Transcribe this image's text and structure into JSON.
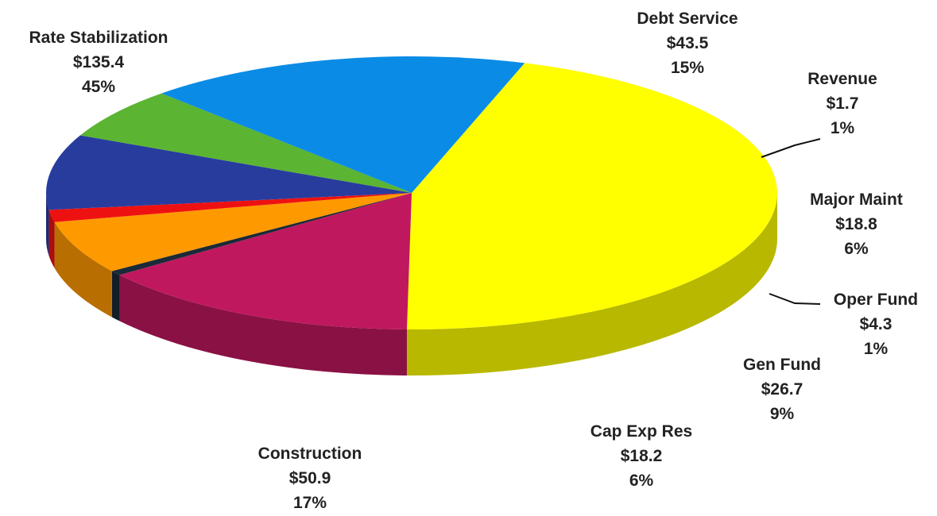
{
  "chart_data": {
    "type": "pie",
    "title": "",
    "slices": [
      {
        "name": "Rate Stabilization",
        "value": 135.4,
        "value_label": "$135.4",
        "percent_label": "45%",
        "color": "#FFFF00"
      },
      {
        "name": "Debt Service",
        "value": 43.5,
        "value_label": "$43.5",
        "percent_label": "15%",
        "color": "#C0185E"
      },
      {
        "name": "Revenue",
        "value": 1.7,
        "value_label": "$1.7",
        "percent_label": "1%",
        "color": "#1A2A38"
      },
      {
        "name": "Major Maint",
        "value": 18.8,
        "value_label": "$18.8",
        "percent_label": "6%",
        "color": "#FF9900"
      },
      {
        "name": "Oper Fund",
        "value": 4.3,
        "value_label": "$4.3",
        "percent_label": "1%",
        "color": "#EE1111"
      },
      {
        "name": "Gen Fund",
        "value": 26.7,
        "value_label": "$26.7",
        "percent_label": "9%",
        "color": "#283C9E"
      },
      {
        "name": "Cap Exp Res",
        "value": 18.2,
        "value_label": "$18.2",
        "percent_label": "6%",
        "color": "#5BB432"
      },
      {
        "name": "Construction",
        "value": 50.9,
        "value_label": "$50.9",
        "percent_label": "17%",
        "color": "#0A8CE6"
      }
    ]
  }
}
